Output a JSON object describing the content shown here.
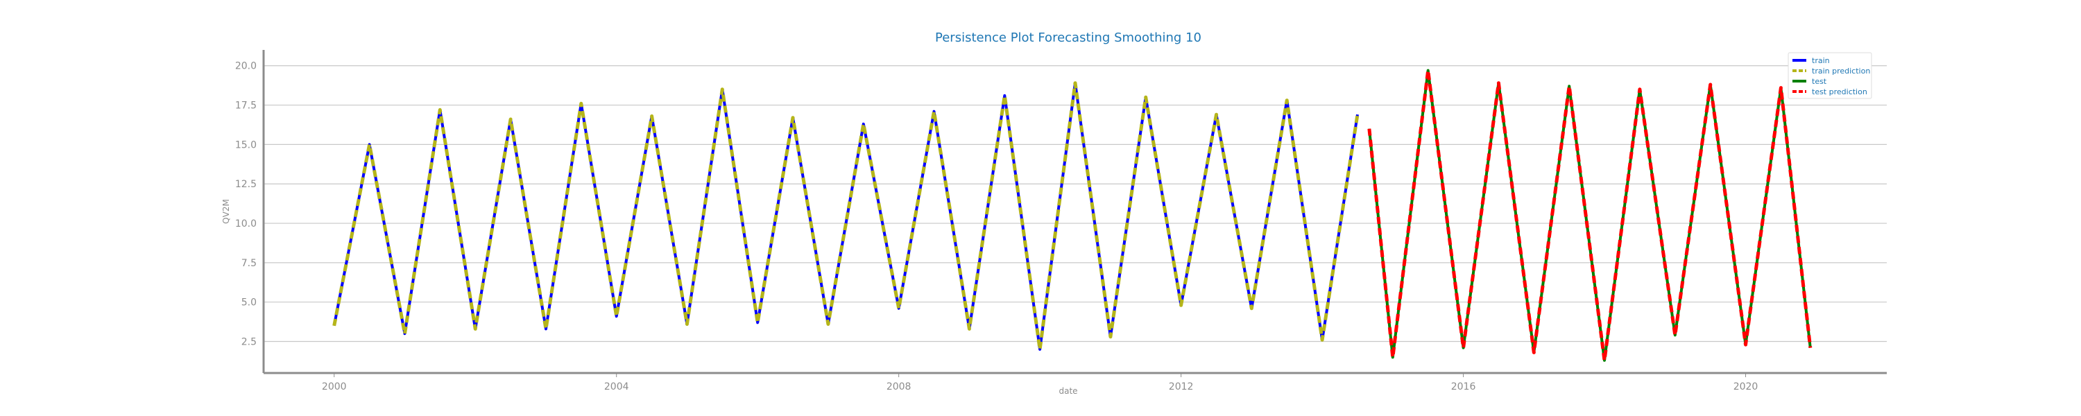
{
  "chart_data": {
    "type": "line",
    "title": "Persistence Plot Forecasting Smoothing 10",
    "xlabel": "date",
    "ylabel": "QV2M",
    "xlim": [
      "1999",
      "2022"
    ],
    "ylim": [
      0.5,
      21.0
    ],
    "x_ticks": [
      "2000",
      "2004",
      "2008",
      "2012",
      "2016",
      "2020"
    ],
    "y_ticks": [
      "2.5",
      "5.0",
      "7.5",
      "10.0",
      "12.5",
      "15.0",
      "17.5",
      "20.0"
    ],
    "grid": "horizontal",
    "legend_position": "top-right",
    "legend": [
      "train",
      "train prediction",
      "test",
      "test prediction"
    ],
    "series": [
      {
        "name": "train",
        "color": "#0000ff",
        "style": "solid",
        "x": [
          "2000-01",
          "2000-07",
          "2001-01",
          "2001-07",
          "2002-01",
          "2002-07",
          "2003-01",
          "2003-07",
          "2004-01",
          "2004-07",
          "2005-01",
          "2005-07",
          "2006-01",
          "2006-07",
          "2007-01",
          "2007-07",
          "2008-01",
          "2008-07",
          "2009-01",
          "2009-07",
          "2010-01",
          "2010-07",
          "2011-01",
          "2011-07",
          "2012-01",
          "2012-07",
          "2013-01",
          "2013-07",
          "2014-01",
          "2014-07"
        ],
        "y": [
          3.5,
          15.0,
          3.0,
          17.2,
          3.3,
          16.6,
          3.3,
          17.6,
          4.1,
          16.8,
          3.6,
          18.5,
          3.7,
          16.7,
          3.6,
          16.3,
          4.6,
          17.1,
          3.3,
          18.1,
          2.0,
          18.9,
          2.8,
          18.0,
          4.8,
          16.9,
          4.6,
          17.8,
          2.6,
          16.9
        ]
      },
      {
        "name": "train prediction",
        "color": "#b5b51a",
        "style": "dashed",
        "x": [
          "2000-01",
          "2000-07",
          "2001-01",
          "2001-07",
          "2002-01",
          "2002-07",
          "2003-01",
          "2003-07",
          "2004-01",
          "2004-07",
          "2005-01",
          "2005-07",
          "2006-01",
          "2006-07",
          "2007-01",
          "2007-07",
          "2008-01",
          "2008-07",
          "2009-01",
          "2009-07",
          "2010-01",
          "2010-07",
          "2011-01",
          "2011-07",
          "2012-01",
          "2012-07",
          "2013-01",
          "2013-07",
          "2014-01",
          "2014-07"
        ],
        "y": [
          3.5,
          15.0,
          3.0,
          17.2,
          3.3,
          16.6,
          3.3,
          17.6,
          4.1,
          16.8,
          3.6,
          18.5,
          3.7,
          16.7,
          3.6,
          16.3,
          4.6,
          17.1,
          3.3,
          18.1,
          2.0,
          18.9,
          2.8,
          18.0,
          4.8,
          16.9,
          4.6,
          17.8,
          2.6,
          16.9
        ]
      },
      {
        "name": "test",
        "color": "#008000",
        "style": "solid",
        "x": [
          "2014-09",
          "2015-01",
          "2015-07",
          "2016-01",
          "2016-07",
          "2017-01",
          "2017-07",
          "2018-01",
          "2018-07",
          "2019-01",
          "2019-07",
          "2020-01",
          "2020-07",
          "2020-12"
        ],
        "y": [
          16.0,
          1.5,
          19.7,
          2.1,
          18.9,
          1.8,
          18.7,
          1.3,
          18.5,
          2.9,
          18.8,
          2.3,
          18.6,
          2.1
        ]
      },
      {
        "name": "test prediction",
        "color": "#ff0000",
        "style": "dashed",
        "x": [
          "2014-09",
          "2015-01",
          "2015-07",
          "2016-01",
          "2016-07",
          "2017-01",
          "2017-07",
          "2018-01",
          "2018-07",
          "2019-01",
          "2019-07",
          "2020-01",
          "2020-07",
          "2020-12"
        ],
        "y": [
          16.0,
          1.5,
          19.7,
          2.1,
          18.9,
          1.8,
          18.7,
          1.3,
          18.5,
          2.9,
          18.8,
          2.3,
          18.6,
          2.1
        ]
      }
    ]
  }
}
